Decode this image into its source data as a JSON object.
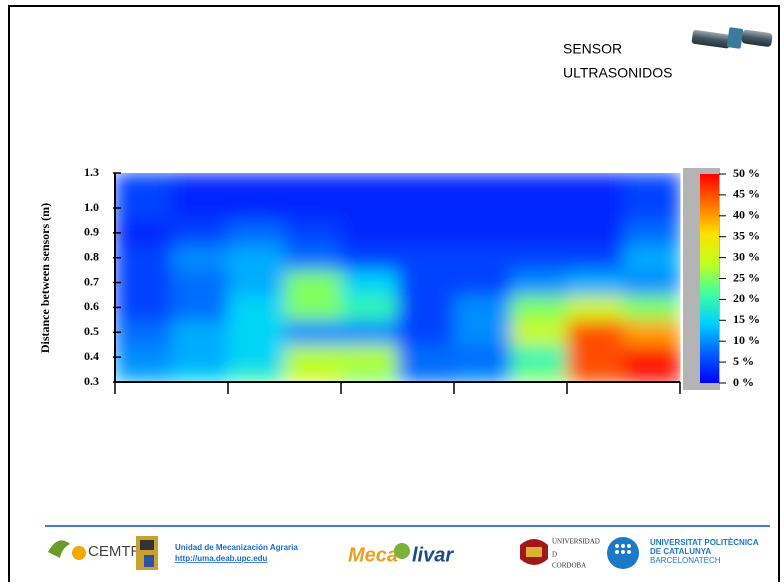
{
  "header": {
    "sensor_lines": [
      "SENSOR",
      "ULTRASONIDOS"
    ]
  },
  "chart_data": {
    "type": "heatmap",
    "ylabel": "Distance between sensors (m)",
    "yticks": [
      0.3,
      0.4,
      0.5,
      0.6,
      0.7,
      0.8,
      0.9,
      {
        "value": 1,
        "label": "1.0"
      },
      1.3
    ],
    "values": [
      [
        12,
        15,
        20,
        30,
        25,
        8,
        10,
        25,
        45,
        50
      ],
      [
        10,
        12,
        15,
        28,
        28,
        8,
        8,
        20,
        45,
        48
      ],
      [
        8,
        12,
        15,
        10,
        10,
        5,
        10,
        30,
        45,
        40
      ],
      [
        5,
        8,
        15,
        25,
        20,
        5,
        10,
        25,
        30,
        25
      ],
      [
        5,
        8,
        12,
        25,
        15,
        5,
        5,
        10,
        12,
        10
      ],
      [
        5,
        10,
        12,
        8,
        5,
        5,
        5,
        5,
        5,
        12
      ],
      [
        3,
        5,
        8,
        5,
        3,
        3,
        3,
        3,
        3,
        8
      ],
      [
        5,
        3,
        3,
        3,
        3,
        3,
        3,
        3,
        3,
        5
      ],
      [
        5,
        3,
        3,
        3,
        3,
        3,
        3,
        3,
        3,
        5
      ]
    ],
    "zlim": [
      0,
      50
    ],
    "zticks": [
      {
        "value": 0,
        "label": "0 %"
      },
      {
        "value": 5,
        "label": "5 %"
      },
      {
        "value": 10,
        "label": "10 %"
      },
      {
        "value": 15,
        "label": "15 %"
      },
      {
        "value": 20,
        "label": "20 %"
      },
      {
        "value": 25,
        "label": "25 %"
      },
      {
        "value": 30,
        "label": "30 %"
      },
      {
        "value": 35,
        "label": "35 %"
      },
      {
        "value": 40,
        "label": "40 %"
      },
      {
        "value": 45,
        "label": "45 %"
      },
      {
        "value": 50,
        "label": "50 %"
      }
    ],
    "colormap": [
      "#0000ff",
      "#0060ff",
      "#00d0ff",
      "#40ffa0",
      "#c0ff20",
      "#ffe000",
      "#ff7000",
      "#ff0000"
    ]
  },
  "footer": {
    "cemtro": "CEMTRO",
    "unit": "Unidad de Mecanización Agraria",
    "link": "http://uma.deab.upc.edu",
    "meca": "Meca",
    "olivar": "livar",
    "uco": [
      "UNIVERSIDAD",
      "D",
      "CORDOBA"
    ],
    "upc": [
      "UNIVERSITAT POLITÈCNICA",
      "DE CATALUNYA",
      "BARCELONATECH"
    ]
  }
}
